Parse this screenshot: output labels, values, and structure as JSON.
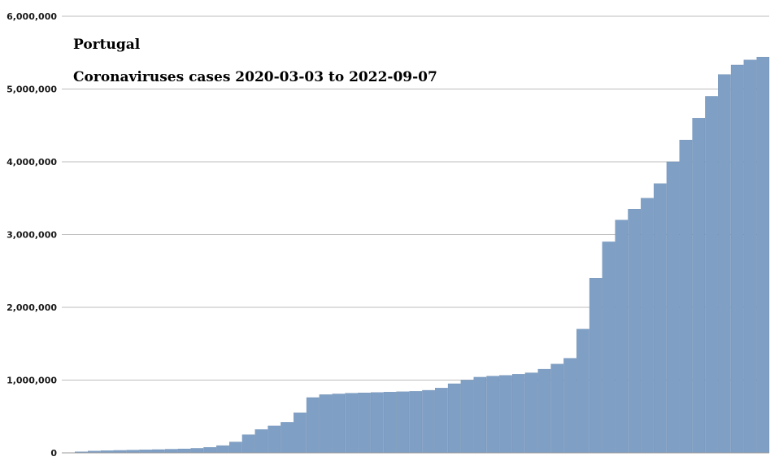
{
  "chart_data": {
    "type": "bar",
    "title": "Portugal",
    "subtitle": "Coronaviruses cases 2020-03-03 to 2022-09-07",
    "xlabel": "",
    "ylabel": "",
    "x_range": [
      "2020-03-03",
      "2022-09-07"
    ],
    "ylim": [
      0,
      6000000
    ],
    "yticks": [
      0,
      1000000,
      2000000,
      3000000,
      4000000,
      5000000,
      6000000
    ],
    "ytick_labels": [
      "0",
      "1,000,000",
      "2,000,000",
      "3,000,000",
      "4,000,000",
      "5,000,000",
      "6,000,000"
    ],
    "grid": true,
    "bar_color": "#7f9fc4",
    "series": [
      {
        "values": [
          0,
          15000,
          25000,
          30000,
          34000,
          38000,
          42000,
          45000,
          50000,
          55000,
          62000,
          75000,
          100000,
          150000,
          250000,
          320000,
          370000,
          420000,
          550000,
          760000,
          800000,
          810000,
          820000,
          825000,
          830000,
          835000,
          840000,
          845000,
          860000,
          890000,
          950000,
          1000000,
          1040000,
          1055000,
          1065000,
          1080000,
          1100000,
          1150000,
          1220000,
          1300000,
          1700000,
          2400000,
          2900000,
          3200000,
          3350000,
          3500000,
          3700000,
          4000000,
          4300000,
          4600000,
          4900000,
          5200000,
          5330000,
          5400000,
          5440000
        ]
      }
    ]
  }
}
